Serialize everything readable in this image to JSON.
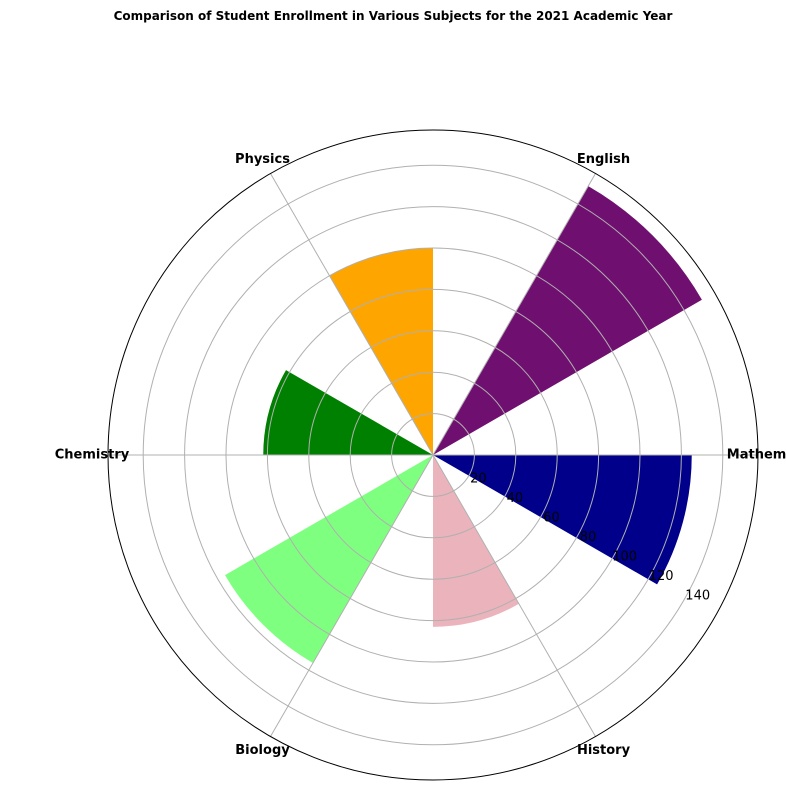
{
  "chart_data": {
    "type": "polar-bar",
    "title": "Comparison of Student Enrollment in Various Subjects for the 2021 Academic Year",
    "categories": [
      "Mathematics",
      "English",
      "Physics",
      "Chemistry",
      "Biology",
      "History"
    ],
    "values": [
      125,
      150,
      100,
      82,
      116,
      83
    ],
    "colors": [
      "#00008b",
      "#6f0f6f",
      "#ffa500",
      "#008000",
      "#7fff7f",
      "#ebb4bc"
    ],
    "radial_ticks": [
      20,
      40,
      60,
      80,
      100,
      120,
      140
    ],
    "rlim": [
      0,
      157
    ],
    "grid": true
  }
}
